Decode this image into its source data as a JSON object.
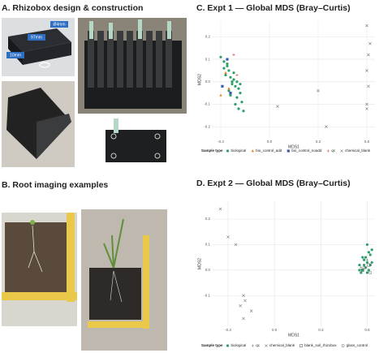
{
  "panels": {
    "A": {
      "title": "A. Rhizobox design & construction",
      "labels": [
        "Ø4mm",
        "97mm",
        "10mm"
      ]
    },
    "B": {
      "title": "B. Root imaging examples"
    }
  },
  "chart_data": [
    {
      "type": "scatter",
      "title": "C. Expt 1 — Global MDS (Bray–Curtis)",
      "x_label": "MDS1",
      "y_label": "MDS2",
      "xlim": [
        -0.35,
        0.65
      ],
      "ylim": [
        -0.25,
        0.27
      ],
      "xticks": [
        -0.3,
        {
          "value": 0,
          "label": "0.0"
        },
        0.3,
        0.6
      ],
      "yticks": [
        -0.2,
        -0.1,
        {
          "value": 0,
          "label": "0.0"
        },
        0.1,
        0.2
      ],
      "grid": true,
      "legend_title": "Sample type",
      "legend": "bottom",
      "series": [
        {
          "name": "biological",
          "color": "#2e9e6a",
          "marker": "circle",
          "x": [
            -0.3,
            -0.28,
            -0.26,
            -0.25,
            -0.27,
            -0.24,
            -0.22,
            -0.2,
            -0.23,
            -0.21,
            -0.19,
            -0.18,
            -0.25,
            -0.28,
            -0.22,
            -0.2,
            -0.17,
            -0.24,
            -0.26,
            -0.21,
            -0.19,
            -0.23,
            -0.18,
            -0.16
          ],
          "y": [
            0.11,
            0.09,
            0.07,
            0.05,
            0.03,
            0.02,
            0.01,
            0.0,
            -0.01,
            -0.02,
            -0.03,
            -0.05,
            -0.04,
            0.06,
            0.04,
            -0.07,
            -0.09,
            -0.06,
            0.08,
            -0.1,
            -0.12,
            0.0,
            -0.01,
            -0.13
          ]
        },
        {
          "name": "bio_control_add",
          "color": "#e8872a",
          "marker": "triangle",
          "x": [
            -0.3,
            -0.27,
            -0.25
          ],
          "y": [
            -0.06,
            0.04,
            -0.03
          ]
        },
        {
          "name": "bio_control_noadd",
          "color": "#3b5ba8",
          "marker": "square",
          "x": [
            -0.29,
            -0.26,
            -0.24
          ],
          "y": [
            -0.02,
            0.1,
            -0.05
          ]
        },
        {
          "name": "qc",
          "color": "#d2473b",
          "marker": "plus",
          "x": [
            -0.22,
            -0.2
          ],
          "y": [
            0.12,
            0.03
          ]
        },
        {
          "name": "chemical_blank",
          "color": "#7a7a7a",
          "marker": "x",
          "x": [
            0.6,
            0.61,
            0.6,
            0.62,
            0.61,
            0.6,
            0.6,
            0.3,
            0.05,
            0.35
          ],
          "y": [
            0.25,
            0.12,
            0.05,
            0.17,
            -0.02,
            -0.1,
            -0.12,
            -0.04,
            -0.11,
            -0.2
          ]
        }
      ]
    },
    {
      "type": "scatter",
      "title": "D. Expt 2 — Global MDS (Bray–Curtis)",
      "x_label": "MDS1",
      "y_label": "MDS2",
      "xlim": [
        -0.4,
        0.65
      ],
      "ylim": [
        -0.22,
        0.27
      ],
      "xticks": [
        -0.3,
        {
          "value": 0,
          "label": "0.0"
        },
        0.3,
        0.6
      ],
      "yticks": [
        -0.1,
        {
          "value": 0,
          "label": "0.0"
        },
        0.1,
        0.2
      ],
      "grid": true,
      "legend_title": "Sample type",
      "legend": "bottom",
      "series": [
        {
          "name": "biological",
          "color": "#2e9e6a",
          "marker": "circle",
          "x": [
            0.55,
            0.57,
            0.58,
            0.6,
            0.62,
            0.56,
            0.59,
            0.61,
            0.63,
            0.57,
            0.6,
            0.58,
            0.62,
            0.55,
            0.59,
            0.61,
            0.6,
            0.63
          ],
          "y": [
            0.02,
            0.0,
            0.04,
            0.03,
            0.06,
            -0.01,
            0.01,
            0.0,
            0.08,
            0.05,
            -0.01,
            0.02,
            0.02,
            0.0,
            0.05,
            0.07,
            0.1,
            0.03
          ]
        },
        {
          "name": "qc",
          "color": "#7a7a7a",
          "marker": "plus",
          "x": [
            0.56,
            0.6
          ],
          "y": [
            0.01,
            0.04
          ]
        },
        {
          "name": "chemical_blank",
          "color": "#7a7a7a",
          "marker": "x",
          "x": [
            -0.35,
            -0.3,
            -0.25,
            -0.2,
            -0.19,
            -0.22,
            -0.15,
            -0.2
          ],
          "y": [
            0.24,
            0.13,
            0.1,
            -0.1,
            -0.12,
            -0.14,
            -0.16,
            -0.19
          ]
        },
        {
          "name": "blank_soil_rhizobox",
          "color": "#555555",
          "marker": "square-open",
          "x": [
            0.57,
            0.61
          ],
          "y": [
            0.0,
            0.02
          ]
        },
        {
          "name": "glass_control",
          "color": "#555555",
          "marker": "circle-open",
          "x": [
            0.58,
            0.62
          ],
          "y": [
            0.01,
            -0.01
          ]
        }
      ]
    }
  ]
}
